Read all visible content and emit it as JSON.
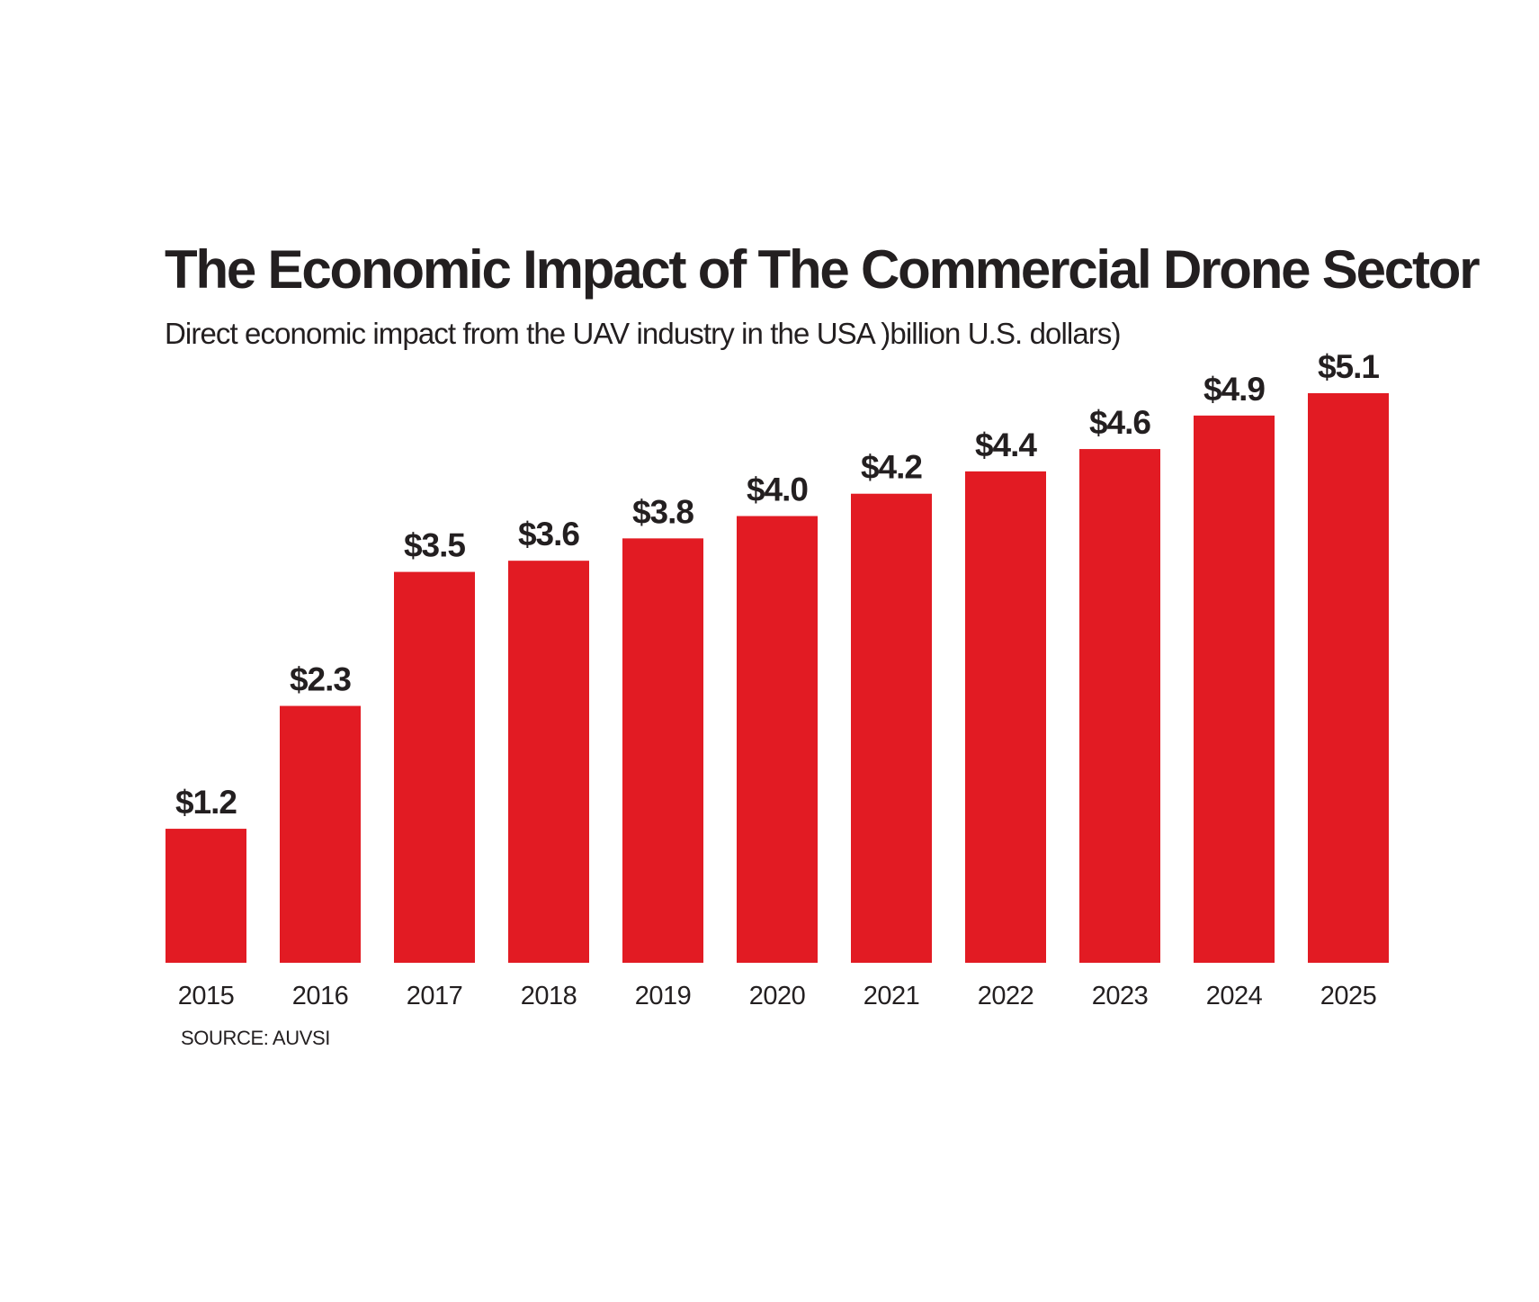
{
  "chart_data": {
    "type": "bar",
    "title": "The Economic Impact of The Commercial Drone Sector",
    "subtitle": "Direct economic impact from the UAV industry in the USA )billion U.S. dollars)",
    "source": "SOURCE: AUVSI",
    "categories": [
      "2015",
      "2016",
      "2017",
      "2018",
      "2019",
      "2020",
      "2021",
      "2022",
      "2023",
      "2024",
      "2025"
    ],
    "values": [
      1.2,
      2.3,
      3.5,
      3.6,
      3.8,
      4.0,
      4.2,
      4.4,
      4.6,
      4.9,
      5.1
    ],
    "value_labels": [
      "$1.2",
      "$2.3",
      "$3.5",
      "$3.6",
      "$3.8",
      "$4.0",
      "$4.2",
      "$4.4",
      "$4.6",
      "$4.9",
      "$5.1"
    ],
    "xlabel": "",
    "ylabel": "",
    "ylim": [
      0,
      5.1
    ],
    "grid": false,
    "bar_color": "#e21b23",
    "text_color": "#231f20"
  }
}
